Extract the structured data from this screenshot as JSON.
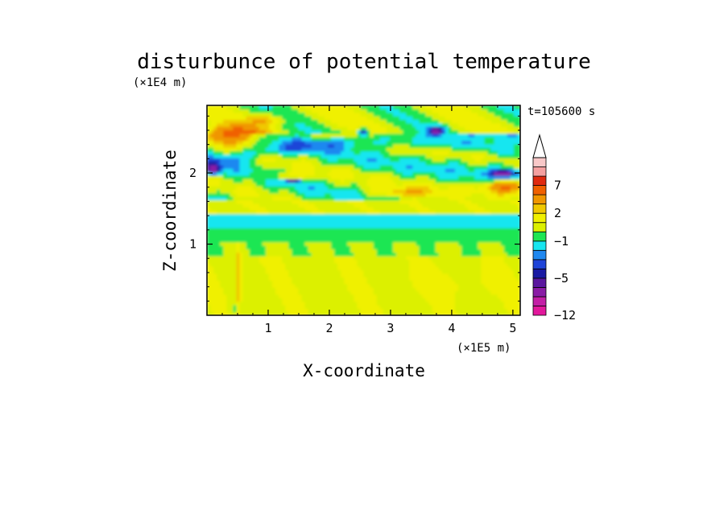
{
  "chart_data": {
    "type": "heatmap",
    "title": "disturbunce of potential temperature",
    "xlabel": "X-coordinate",
    "ylabel": "Z-coordinate",
    "x_unit": "(×1E5 m)",
    "y_unit": "(×1E4 m)",
    "time_label": "t=105600 s",
    "xlim": [
      0,
      5.12
    ],
    "ylim": [
      0,
      2.95
    ],
    "x_ticks": [
      "1",
      "2",
      "3",
      "4",
      "5"
    ],
    "y_ticks": [
      "1",
      "2"
    ],
    "x_tick_values": [
      1,
      2,
      3,
      4,
      5
    ],
    "y_tick_values": [
      1,
      2
    ],
    "colorbar": {
      "levels": [
        -12,
        -10,
        -8,
        -6,
        -5,
        -4,
        -3,
        -2,
        -1,
        0,
        1,
        2,
        3,
        5,
        7,
        9,
        11
      ],
      "labels": [
        "-12",
        "-5",
        "-1",
        "2",
        "7"
      ],
      "label_values": [
        -12,
        -5,
        -1,
        2,
        7
      ],
      "extend": "max",
      "colors": [
        "#e2189c",
        "#c31fa6",
        "#8a1ca6",
        "#5a179f",
        "#1a1aa3",
        "#1f44d8",
        "#1f88f0",
        "#18e6f0",
        "#1ee653",
        "#dcf000",
        "#f0f000",
        "#f0c800",
        "#f09600",
        "#f06000",
        "#e02a10",
        "#f5a0a0",
        "#f8c8c8"
      ]
    }
  }
}
